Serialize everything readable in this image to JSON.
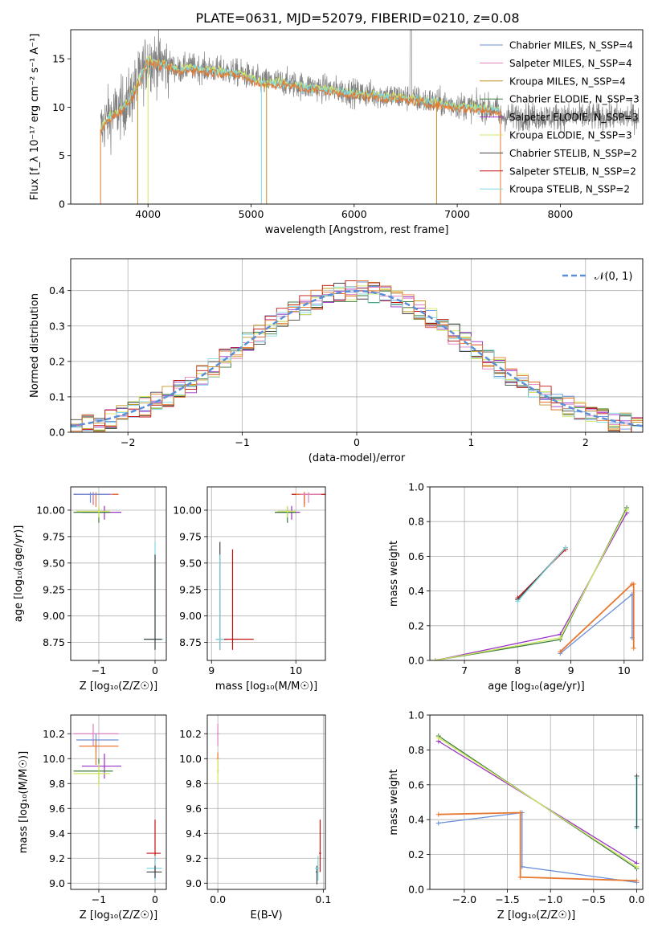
{
  "figure_title": "PLATE=0631, MJD=52079, FIBERID=0210, z=0.08",
  "colors": {
    "chabrier_miles": "#6a8fd8",
    "salpeter_miles": "#e080c0",
    "kroupa_miles": "#c09020",
    "chabrier_elodie": "#3a7a3a",
    "salpeter_elodie": "#9a30c8",
    "kroupa_elodie": "#d0e860",
    "chabrier_stelib": "#444444",
    "salpeter_stelib": "#c01010",
    "kroupa_stelib": "#80d8e0",
    "orange": "#e87830",
    "gauss": "#5b8fd8",
    "data": "#808080"
  },
  "chart_data": [
    {
      "id": "spectrum",
      "type": "line",
      "xlabel": "wavelength [Angstrom, rest frame]",
      "ylabel": "Flux [f_λ 10⁻¹⁷ erg cm⁻² s⁻¹ A⁻¹]",
      "xlim": [
        3250,
        8800
      ],
      "ylim": [
        0,
        18
      ],
      "xticks": [
        "4000",
        "5000",
        "6000",
        "7000",
        "8000"
      ],
      "yticks": [
        "0",
        "5",
        "10",
        "15"
      ],
      "grid": false,
      "legend": [
        "Chabrier MILES, N_SSP=4",
        "Salpeter MILES, N_SSP=4",
        "Kroupa MILES, N_SSP=4",
        "Chabrier ELODIE, N_SSP=3",
        "Salpeter ELODIE, N_SSP=3",
        "Kroupa ELODIE, N_SSP=3",
        "Chabrier STELIB, N_SSP=2",
        "Salpeter STELIB, N_SSP=2",
        "Kroupa STELIB, N_SSP=2"
      ],
      "legend_placement": "top-right",
      "continuum_x": [
        3530,
        3600,
        3700,
        3800,
        3900,
        4000,
        4100,
        4200,
        4300,
        4400,
        4500,
        4700,
        4900,
        5100,
        5300,
        5500,
        5800,
        6000,
        6200,
        6500,
        6800,
        7000,
        7200,
        7400
      ],
      "continuum_y": [
        7.5,
        8.8,
        9.6,
        10.5,
        12.5,
        15.0,
        14.6,
        14.4,
        13.8,
        14.2,
        14.0,
        13.8,
        13.5,
        12.6,
        12.6,
        12.2,
        11.8,
        11.5,
        11.3,
        11.0,
        10.5,
        10.2,
        10.0,
        9.8
      ]
    },
    {
      "id": "residuals",
      "type": "step",
      "xlabel": "(data-model)/error",
      "ylabel": "Normed distribution",
      "xlim": [
        -2.5,
        2.5
      ],
      "ylim": [
        0,
        0.49
      ],
      "xticks": [
        "−2",
        "−1",
        "0",
        "1",
        "2"
      ],
      "yticks": [
        "0.0",
        "0.1",
        "0.2",
        "0.3",
        "0.4"
      ],
      "grid": true,
      "legend": [
        "𝒩(0, 1)"
      ],
      "legend_placement": "top-right",
      "bin_width": 0.1
    },
    {
      "id": "age_vs_z",
      "type": "scatter",
      "xlabel": "Z [log₁₀(Z/Z☉)]",
      "ylabel": "age  [log₁₀(age/yr)]",
      "xlim": [
        -1.5,
        0.2
      ],
      "ylim": [
        8.58,
        10.22
      ],
      "xticks": [
        "−1",
        "0"
      ],
      "yticks": [
        "8.75",
        "9.00",
        "9.25",
        "9.50",
        "9.75",
        "10.00"
      ],
      "grid": true
    },
    {
      "id": "age_vs_mass",
      "type": "scatter",
      "xlabel": "mass [log₁₀(M/M☉)]",
      "xlim": [
        8.95,
        10.35
      ],
      "ylim": [
        8.58,
        10.22
      ],
      "xticks": [
        "9",
        "10"
      ],
      "yticks": [
        "8.75",
        "9.00",
        "9.25",
        "9.50",
        "9.75",
        "10.00"
      ],
      "grid": true
    },
    {
      "id": "weight_vs_age",
      "type": "line",
      "xlabel": "age  [log₁₀(age/yr)]",
      "ylabel": "mass weight",
      "xlim": [
        6.35,
        10.35
      ],
      "ylim": [
        0,
        1
      ],
      "xticks": [
        "7",
        "8",
        "9",
        "10"
      ],
      "yticks": [
        "0.0",
        "0.2",
        "0.4",
        "0.6",
        "0.8",
        "1.0"
      ],
      "grid": true
    },
    {
      "id": "mass_vs_z",
      "type": "scatter",
      "xlabel": "Z [log₁₀(Z/Z☉)]",
      "ylabel": "mass [log₁₀(M/M☉)]",
      "xlim": [
        -1.5,
        0.2
      ],
      "ylim": [
        8.95,
        10.35
      ],
      "xticks": [
        "−1",
        "0"
      ],
      "yticks": [
        "9.0",
        "9.2",
        "9.4",
        "9.6",
        "9.8",
        "10.0",
        "10.2"
      ],
      "grid": true
    },
    {
      "id": "mass_vs_ebv",
      "type": "scatter",
      "xlabel": "E(B-V)",
      "xlim": [
        -0.01,
        0.102
      ],
      "ylim": [
        8.95,
        10.35
      ],
      "xticks": [
        "0.0",
        "0.1"
      ],
      "yticks": [
        "9.0",
        "9.2",
        "9.4",
        "9.6",
        "9.8",
        "10.0",
        "10.2"
      ],
      "grid": true
    },
    {
      "id": "weight_vs_z",
      "type": "line",
      "xlabel": "Z [log₁₀(Z/Z☉)]",
      "ylabel": "mass weight",
      "xlim": [
        -2.4,
        0.07
      ],
      "ylim": [
        0,
        1
      ],
      "xticks": [
        "−2.0",
        "−1.5",
        "−1.0",
        "−0.5",
        "0.0"
      ],
      "yticks": [
        "0.0",
        "0.2",
        "0.4",
        "0.6",
        "0.8",
        "1.0"
      ],
      "grid": true
    }
  ]
}
